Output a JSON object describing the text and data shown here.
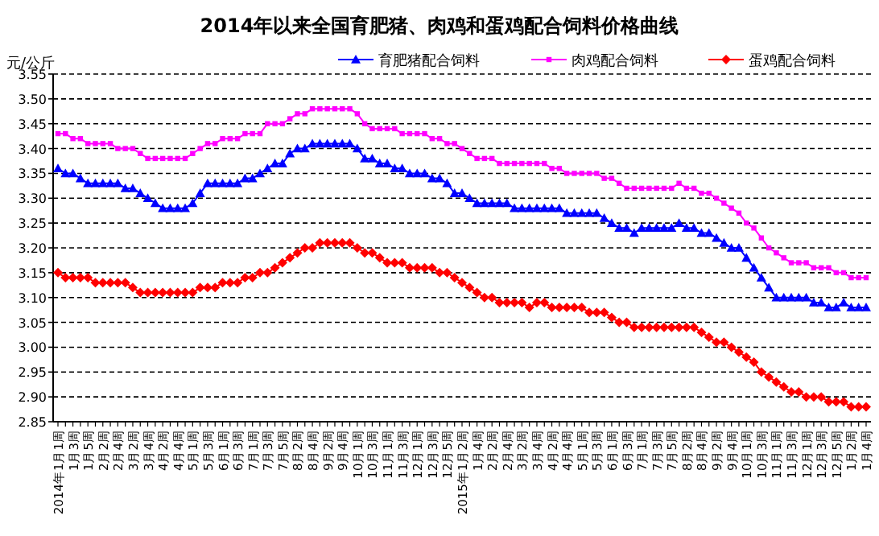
{
  "chart_data": {
    "type": "line",
    "title": "2014年以来全国育肥猪、肉鸡和蛋鸡配合饲料价格曲线",
    "ylabel": "元/公斤",
    "categories": [
      "2014年1月1周",
      null,
      "1月3周",
      null,
      "1月5周",
      null,
      "2月2周",
      null,
      "2月4周",
      null,
      "3月2周",
      null,
      "3月4周",
      null,
      "4月2周",
      null,
      "4月4周",
      null,
      "5月1周",
      null,
      "5月3周",
      null,
      "6月1周",
      null,
      "6月3周",
      null,
      "7月1周",
      null,
      "7月3周",
      null,
      "7月5周",
      null,
      "8月2周",
      null,
      "8月4周",
      null,
      "9月2周",
      null,
      "9月4周",
      null,
      "10月1周",
      null,
      "10月3周",
      null,
      "11月1周",
      null,
      "11月3周",
      null,
      "12月1周",
      null,
      "12月3周",
      null,
      "12月5周",
      null,
      "2015年1月2周",
      null,
      "1月4周",
      null,
      "2月2周",
      null,
      "2月4周",
      null,
      "3月2周",
      null,
      "3月4周",
      null,
      "4月2周",
      null,
      "4月4周",
      null,
      "5月1周",
      null,
      "5月3周",
      null,
      "6月1周",
      null,
      "6月3周",
      null,
      "7月1周",
      null,
      "7月3周",
      null,
      "7月5周",
      null,
      "8月2周",
      null,
      "8月4周",
      null,
      "9月2周",
      null,
      "9月4周",
      null,
      "10月1周",
      null,
      "10月3周",
      null,
      "11月1周",
      null,
      "11月3周",
      null,
      "12月1周",
      null,
      "12月3周",
      null,
      "12月5周",
      null,
      "1月2周",
      null,
      "1月4周"
    ],
    "series": [
      {
        "name": "育肥猪配合饲料",
        "color": "#0000ff",
        "marker": "triangle",
        "values": [
          3.36,
          3.35,
          3.35,
          3.34,
          3.33,
          3.33,
          3.33,
          3.33,
          3.33,
          3.32,
          3.32,
          3.31,
          3.3,
          3.29,
          3.28,
          3.28,
          3.28,
          3.28,
          3.29,
          3.31,
          3.33,
          3.33,
          3.33,
          3.33,
          3.33,
          3.34,
          3.34,
          3.35,
          3.36,
          3.37,
          3.37,
          3.39,
          3.4,
          3.4,
          3.41,
          3.41,
          3.41,
          3.41,
          3.41,
          3.41,
          3.4,
          3.38,
          3.38,
          3.37,
          3.37,
          3.36,
          3.36,
          3.35,
          3.35,
          3.35,
          3.34,
          3.34,
          3.33,
          3.31,
          3.31,
          3.3,
          3.29,
          3.29,
          3.29,
          3.29,
          3.29,
          3.28,
          3.28,
          3.28,
          3.28,
          3.28,
          3.28,
          3.28,
          3.27,
          3.27,
          3.27,
          3.27,
          3.27,
          3.26,
          3.25,
          3.24,
          3.24,
          3.23,
          3.24,
          3.24,
          3.24,
          3.24,
          3.24,
          3.25,
          3.24,
          3.24,
          3.23,
          3.23,
          3.22,
          3.21,
          3.2,
          3.2,
          3.18,
          3.16,
          3.14,
          3.12,
          3.1,
          3.1,
          3.1,
          3.1,
          3.1,
          3.09,
          3.09,
          3.08,
          3.08,
          3.09,
          3.08,
          3.08,
          3.08
        ]
      },
      {
        "name": "肉鸡配合饲料",
        "color": "#ff00ff",
        "marker": "square",
        "values": [
          3.43,
          3.43,
          3.42,
          3.42,
          3.41,
          3.41,
          3.41,
          3.41,
          3.4,
          3.4,
          3.4,
          3.39,
          3.38,
          3.38,
          3.38,
          3.38,
          3.38,
          3.38,
          3.39,
          3.4,
          3.41,
          3.41,
          3.42,
          3.42,
          3.42,
          3.43,
          3.43,
          3.43,
          3.45,
          3.45,
          3.45,
          3.46,
          3.47,
          3.47,
          3.48,
          3.48,
          3.48,
          3.48,
          3.48,
          3.48,
          3.47,
          3.45,
          3.44,
          3.44,
          3.44,
          3.44,
          3.43,
          3.43,
          3.43,
          3.43,
          3.42,
          3.42,
          3.41,
          3.41,
          3.4,
          3.39,
          3.38,
          3.38,
          3.38,
          3.37,
          3.37,
          3.37,
          3.37,
          3.37,
          3.37,
          3.37,
          3.36,
          3.36,
          3.35,
          3.35,
          3.35,
          3.35,
          3.35,
          3.34,
          3.34,
          3.33,
          3.32,
          3.32,
          3.32,
          3.32,
          3.32,
          3.32,
          3.32,
          3.33,
          3.32,
          3.32,
          3.31,
          3.31,
          3.3,
          3.29,
          3.28,
          3.27,
          3.25,
          3.24,
          3.22,
          3.2,
          3.19,
          3.18,
          3.17,
          3.17,
          3.17,
          3.16,
          3.16,
          3.16,
          3.15,
          3.15,
          3.14,
          3.14,
          3.14
        ]
      },
      {
        "name": "蛋鸡配合饲料",
        "color": "#ff0000",
        "marker": "diamond",
        "values": [
          3.15,
          3.14,
          3.14,
          3.14,
          3.14,
          3.13,
          3.13,
          3.13,
          3.13,
          3.13,
          3.12,
          3.11,
          3.11,
          3.11,
          3.11,
          3.11,
          3.11,
          3.11,
          3.11,
          3.12,
          3.12,
          3.12,
          3.13,
          3.13,
          3.13,
          3.14,
          3.14,
          3.15,
          3.15,
          3.16,
          3.17,
          3.18,
          3.19,
          3.2,
          3.2,
          3.21,
          3.21,
          3.21,
          3.21,
          3.21,
          3.2,
          3.19,
          3.19,
          3.18,
          3.17,
          3.17,
          3.17,
          3.16,
          3.16,
          3.16,
          3.16,
          3.15,
          3.15,
          3.14,
          3.13,
          3.12,
          3.11,
          3.1,
          3.1,
          3.09,
          3.09,
          3.09,
          3.09,
          3.08,
          3.09,
          3.09,
          3.08,
          3.08,
          3.08,
          3.08,
          3.08,
          3.07,
          3.07,
          3.07,
          3.06,
          3.05,
          3.05,
          3.04,
          3.04,
          3.04,
          3.04,
          3.04,
          3.04,
          3.04,
          3.04,
          3.04,
          3.03,
          3.02,
          3.01,
          3.01,
          3.0,
          2.99,
          2.98,
          2.97,
          2.95,
          2.94,
          2.93,
          2.92,
          2.91,
          2.91,
          2.9,
          2.9,
          2.9,
          2.89,
          2.89,
          2.89,
          2.88,
          2.88,
          2.88
        ]
      }
    ],
    "ylim": [
      2.85,
      3.55
    ],
    "yticks": [
      {
        "value": 2.85,
        "label": "2.85"
      },
      {
        "value": 2.9,
        "label": "2.90"
      },
      {
        "value": 2.95,
        "label": "2.95"
      },
      {
        "value": 3.0,
        "label": "3.00"
      },
      {
        "value": 3.05,
        "label": "3.05"
      },
      {
        "value": 3.1,
        "label": "3.10"
      },
      {
        "value": 3.15,
        "label": "3.15"
      },
      {
        "value": 3.2,
        "label": "3.20"
      },
      {
        "value": 3.25,
        "label": "3.25"
      },
      {
        "value": 3.3,
        "label": "3.30"
      },
      {
        "value": 3.35,
        "label": "3.35"
      },
      {
        "value": 3.4,
        "label": "3.40"
      },
      {
        "value": 3.45,
        "label": "3.45"
      },
      {
        "value": 3.5,
        "label": "3.50"
      },
      {
        "value": 3.55,
        "label": "3.55"
      }
    ],
    "grid": "y",
    "legend": "top right",
    "line_style": "solid"
  }
}
